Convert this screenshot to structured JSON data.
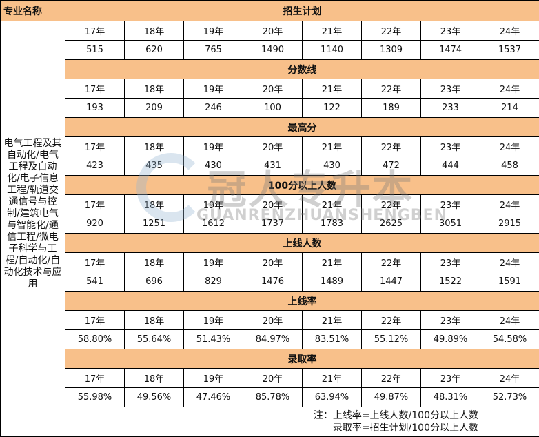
{
  "header": {
    "major_label": "专业名称"
  },
  "major": "电气工程及其自动化/电气工程及自动化/电子信息工程/轨道交通信号与控制/建筑电气与智能化/通信工程/微电子科学与工程/自动化/自动化技术与应用",
  "years": [
    "17年",
    "18年",
    "19年",
    "20年",
    "21年",
    "22年",
    "23年",
    "24年"
  ],
  "sections": [
    {
      "title": "招生计划",
      "values": [
        "515",
        "620",
        "765",
        "1490",
        "1140",
        "1309",
        "1474",
        "1537"
      ]
    },
    {
      "title": "分数线",
      "values": [
        "193",
        "209",
        "246",
        "100",
        "122",
        "189",
        "233",
        "214"
      ]
    },
    {
      "title": "最高分",
      "values": [
        "423",
        "435",
        "430",
        "431",
        "430",
        "472",
        "444",
        "458"
      ]
    },
    {
      "title": "100分以上人数",
      "values": [
        "920",
        "1251",
        "1612",
        "1737",
        "1783",
        "2625",
        "3051",
        "2915"
      ]
    },
    {
      "title": "上线人数",
      "values": [
        "541",
        "696",
        "829",
        "1476",
        "1489",
        "1447",
        "1522",
        "1591"
      ]
    },
    {
      "title": "上线率",
      "values": [
        "58.80%",
        "55.64%",
        "51.43%",
        "84.97%",
        "83.51%",
        "55.12%",
        "49.89%",
        "54.58%"
      ]
    },
    {
      "title": "录取率",
      "values": [
        "55.98%",
        "49.56%",
        "47.46%",
        "85.78%",
        "63.94%",
        "49.87%",
        "48.31%",
        "52.73%"
      ]
    }
  ],
  "notes": [
    "注：上线率=上线人数/100分以上人数",
    "录取率=招生计划/100分以上人数"
  ],
  "watermark": {
    "cn": "冠人专升本",
    "en": "GUANRENZHUANSHENGBEN"
  },
  "colors": {
    "header_bg": "#F8C08A"
  }
}
